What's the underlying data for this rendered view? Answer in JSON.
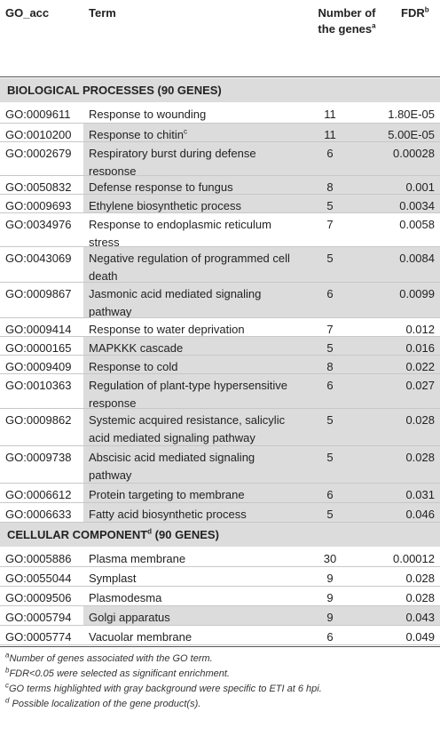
{
  "header": {
    "col_acc": "GO_acc",
    "col_term": "Term",
    "col_num_line1": "Number of",
    "col_num_line2": "the genes",
    "col_num_sup": "a",
    "col_fdr": "FDR",
    "col_fdr_sup": "b"
  },
  "sections": [
    {
      "title": "BIOLOGICAL PROCESSES (90 GENES)",
      "rows": [
        {
          "acc": "GO:0009611",
          "term": "Response to wounding",
          "num": "11",
          "fdr": "1.80E-05",
          "highlight": false
        },
        {
          "acc": "GO:0010200",
          "term": "Response to chitin",
          "term_sup": "c",
          "num": "11",
          "fdr": "5.00E-05",
          "highlight": true
        },
        {
          "acc": "GO:0002679",
          "term": "Respiratory burst during defense response",
          "num": "6",
          "fdr": "0.00028",
          "highlight": true
        },
        {
          "acc": "GO:0050832",
          "term": "Defense response to fungus",
          "num": "8",
          "fdr": "0.001",
          "highlight": true
        },
        {
          "acc": "GO:0009693",
          "term": "Ethylene biosynthetic process",
          "num": "5",
          "fdr": "0.0034",
          "highlight": true
        },
        {
          "acc": "GO:0034976",
          "term": "Response to endoplasmic reticulum stress",
          "num": "7",
          "fdr": "0.0058",
          "highlight": false
        },
        {
          "acc": "GO:0043069",
          "term": "Negative regulation of programmed cell death",
          "num": "5",
          "fdr": "0.0084",
          "highlight": true
        },
        {
          "acc": "GO:0009867",
          "term": "Jasmonic acid mediated signaling pathway",
          "num": "6",
          "fdr": "0.0099",
          "highlight": true
        },
        {
          "acc": "GO:0009414",
          "term": "Response to water deprivation",
          "num": "7",
          "fdr": "0.012",
          "highlight": false
        },
        {
          "acc": "GO:0000165",
          "term": "MAPKKK cascade",
          "num": "5",
          "fdr": "0.016",
          "highlight": true
        },
        {
          "acc": "GO:0009409",
          "term": "Response to cold",
          "num": "8",
          "fdr": "0.022",
          "highlight": true
        },
        {
          "acc": "GO:0010363",
          "term": "Regulation of plant-type hypersensitive response",
          "num": "6",
          "fdr": "0.027",
          "highlight": true
        },
        {
          "acc": "GO:0009862",
          "term": "Systemic acquired resistance, salicylic acid mediated signaling pathway",
          "num": "5",
          "fdr": "0.028",
          "highlight": true
        },
        {
          "acc": "GO:0009738",
          "term": "Abscisic acid mediated signaling pathway",
          "num": "5",
          "fdr": "0.028",
          "highlight": true
        },
        {
          "acc": "GO:0006612",
          "term": "Protein targeting to membrane",
          "num": "6",
          "fdr": "0.031",
          "highlight": true
        },
        {
          "acc": "GO:0006633",
          "term": "Fatty acid biosynthetic process",
          "num": "5",
          "fdr": "0.046",
          "highlight": true
        }
      ]
    },
    {
      "title": "CELLULAR COMPONENT",
      "title_sup": "d",
      "title_suffix": " (90 GENES)",
      "rows": [
        {
          "acc": "GO:0005886",
          "term": "Plasma membrane",
          "num": "30",
          "fdr": "0.00012",
          "highlight": false
        },
        {
          "acc": "GO:0055044",
          "term": "Symplast",
          "num": "9",
          "fdr": "0.028",
          "highlight": false
        },
        {
          "acc": "GO:0009506",
          "term": "Plasmodesma",
          "num": "9",
          "fdr": "0.028",
          "highlight": false
        },
        {
          "acc": "GO:0005794",
          "term": "Golgi apparatus",
          "num": "9",
          "fdr": "0.043",
          "highlight": true
        },
        {
          "acc": "GO:0005774",
          "term": "Vacuolar membrane",
          "num": "6",
          "fdr": "0.049",
          "highlight": false
        }
      ]
    }
  ],
  "footnotes": [
    {
      "mark": "a",
      "text": "Number of genes associated with the GO term."
    },
    {
      "mark": "b",
      "text": "FDR<0.05 were selected as significant enrichment."
    },
    {
      "mark": "c",
      "text": "GO terms highlighted with gray background were specific to ETI at 6 hpi."
    },
    {
      "mark": "d",
      "text": " Possible localization of the gene product(s)."
    }
  ],
  "colors": {
    "highlight": "#dcdcdc",
    "rule": "#555555",
    "separator": "#c8c8c8"
  }
}
